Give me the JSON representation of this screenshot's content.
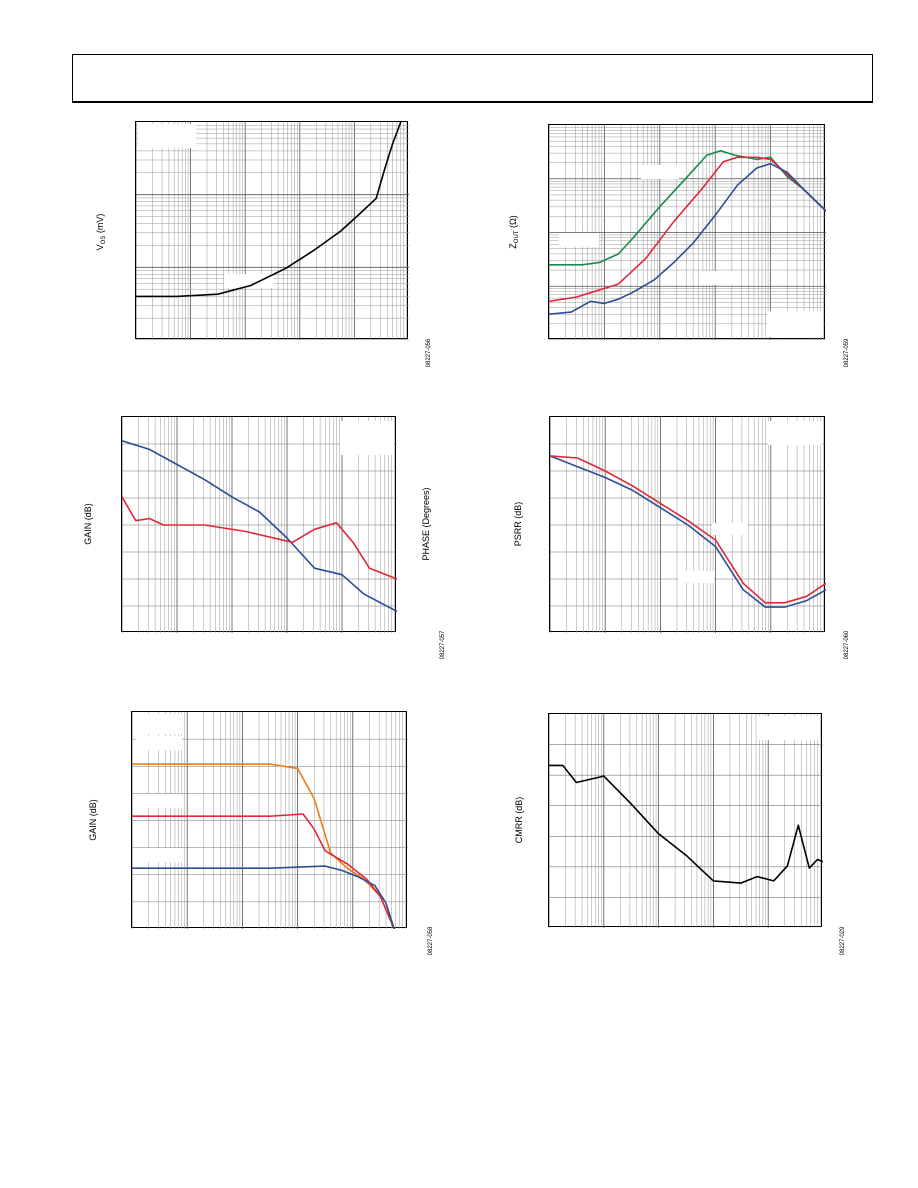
{
  "page": {
    "header": ""
  },
  "colors": {
    "black": "#000000",
    "red": "#e0283a",
    "blue": "#2d4e96",
    "green": "#1a8a4e",
    "orange": "#ee7a1a",
    "legend_fill": "#ffffff"
  },
  "charts": [
    {
      "id": "vos",
      "ylabel_main": "V",
      "ylabel_sub": "OS",
      "ylabel_rest": " (mV)",
      "fig": "08227-056"
    },
    {
      "id": "zout",
      "ylabel_main": "Z",
      "ylabel_sub": "OUT",
      "ylabel_rest": " (Ω)",
      "fig": "08227-059"
    },
    {
      "id": "gainphase",
      "ylabel_left": "GAIN (dB)",
      "ylabel_right": "PHASE (Degrees)",
      "fig": "08227-057"
    },
    {
      "id": "psrr",
      "ylabel": "PSRR (dB)",
      "fig": "08227-060"
    },
    {
      "id": "gain3",
      "ylabel": "GAIN (dB)",
      "fig": "08227-058"
    },
    {
      "id": "cmrr",
      "ylabel": "CMRR (dB)",
      "fig": "08227-029"
    }
  ],
  "chart_data": [
    {
      "type": "line",
      "xscale": "log",
      "series": [
        {
          "color": "black",
          "points": [
            [
              0,
              0.2
            ],
            [
              0.15,
              0.2
            ],
            [
              0.3,
              0.21
            ],
            [
              0.42,
              0.25
            ],
            [
              0.55,
              0.33
            ],
            [
              0.65,
              0.41
            ],
            [
              0.75,
              0.5
            ],
            [
              0.82,
              0.58
            ],
            [
              0.88,
              0.65
            ],
            [
              0.91,
              0.78
            ],
            [
              0.94,
              0.9
            ],
            [
              0.97,
              1.0
            ]
          ]
        }
      ]
    },
    {
      "type": "line",
      "xscale": "log",
      "series": [
        {
          "color": "green",
          "points": [
            [
              0,
              0.35
            ],
            [
              0.12,
              0.35
            ],
            [
              0.18,
              0.36
            ],
            [
              0.25,
              0.4
            ],
            [
              0.3,
              0.47
            ],
            [
              0.4,
              0.62
            ],
            [
              0.5,
              0.76
            ],
            [
              0.57,
              0.86
            ],
            [
              0.62,
              0.88
            ],
            [
              0.67,
              0.86
            ],
            [
              0.75,
              0.84
            ],
            [
              0.8,
              0.85
            ],
            [
              0.86,
              0.76
            ],
            [
              0.92,
              0.7
            ],
            [
              1.0,
              0.6
            ]
          ]
        },
        {
          "color": "red",
          "points": [
            [
              0,
              0.18
            ],
            [
              0.1,
              0.2
            ],
            [
              0.15,
              0.22
            ],
            [
              0.2,
              0.24
            ],
            [
              0.25,
              0.26
            ],
            [
              0.35,
              0.38
            ],
            [
              0.45,
              0.55
            ],
            [
              0.55,
              0.7
            ],
            [
              0.63,
              0.83
            ],
            [
              0.68,
              0.85
            ],
            [
              0.75,
              0.85
            ],
            [
              0.8,
              0.84
            ],
            [
              0.86,
              0.77
            ],
            [
              0.92,
              0.7
            ],
            [
              1.0,
              0.6
            ]
          ]
        },
        {
          "color": "blue",
          "points": [
            [
              0,
              0.12
            ],
            [
              0.08,
              0.13
            ],
            [
              0.15,
              0.18
            ],
            [
              0.2,
              0.17
            ],
            [
              0.25,
              0.19
            ],
            [
              0.3,
              0.22
            ],
            [
              0.38,
              0.28
            ],
            [
              0.45,
              0.36
            ],
            [
              0.52,
              0.45
            ],
            [
              0.6,
              0.58
            ],
            [
              0.68,
              0.72
            ],
            [
              0.75,
              0.8
            ],
            [
              0.8,
              0.82
            ],
            [
              0.86,
              0.78
            ],
            [
              0.92,
              0.7
            ],
            [
              1.0,
              0.6
            ]
          ]
        }
      ]
    },
    {
      "type": "line",
      "xscale": "log",
      "series": [
        {
          "color": "blue",
          "points": [
            [
              0,
              0.89
            ],
            [
              0.1,
              0.85
            ],
            [
              0.2,
              0.78
            ],
            [
              0.3,
              0.71
            ],
            [
              0.4,
              0.63
            ],
            [
              0.5,
              0.56
            ],
            [
              0.6,
              0.44
            ],
            [
              0.7,
              0.3
            ],
            [
              0.8,
              0.27
            ],
            [
              0.88,
              0.18
            ],
            [
              1.0,
              0.1
            ]
          ]
        },
        {
          "color": "red",
          "points": [
            [
              0,
              0.63
            ],
            [
              0.05,
              0.52
            ],
            [
              0.1,
              0.53
            ],
            [
              0.15,
              0.5
            ],
            [
              0.3,
              0.5
            ],
            [
              0.45,
              0.47
            ],
            [
              0.62,
              0.42
            ],
            [
              0.7,
              0.48
            ],
            [
              0.78,
              0.51
            ],
            [
              0.84,
              0.42
            ],
            [
              0.9,
              0.3
            ],
            [
              1.0,
              0.25
            ]
          ]
        }
      ]
    },
    {
      "type": "line",
      "xscale": "log",
      "series": [
        {
          "color": "blue",
          "points": [
            [
              0,
              0.82
            ],
            [
              0.1,
              0.77
            ],
            [
              0.2,
              0.72
            ],
            [
              0.3,
              0.66
            ],
            [
              0.4,
              0.58
            ],
            [
              0.5,
              0.5
            ],
            [
              0.6,
              0.4
            ],
            [
              0.7,
              0.2
            ],
            [
              0.78,
              0.12
            ],
            [
              0.85,
              0.12
            ],
            [
              0.93,
              0.15
            ],
            [
              1.0,
              0.2
            ]
          ]
        },
        {
          "color": "red",
          "points": [
            [
              0,
              0.82
            ],
            [
              0.1,
              0.81
            ],
            [
              0.2,
              0.75
            ],
            [
              0.3,
              0.68
            ],
            [
              0.4,
              0.6
            ],
            [
              0.5,
              0.52
            ],
            [
              0.6,
              0.43
            ],
            [
              0.7,
              0.23
            ],
            [
              0.78,
              0.14
            ],
            [
              0.85,
              0.14
            ],
            [
              0.93,
              0.17
            ],
            [
              1.0,
              0.23
            ]
          ]
        }
      ]
    },
    {
      "type": "line",
      "xscale": "log",
      "series": [
        {
          "color": "orange",
          "points": [
            [
              0,
              0.76
            ],
            [
              0.2,
              0.76
            ],
            [
              0.5,
              0.76
            ],
            [
              0.6,
              0.74
            ],
            [
              0.66,
              0.6
            ],
            [
              0.72,
              0.35
            ],
            [
              0.78,
              0.28
            ],
            [
              0.84,
              0.23
            ],
            [
              0.9,
              0.15
            ],
            [
              0.95,
              0.0
            ]
          ]
        },
        {
          "color": "red",
          "points": [
            [
              0,
              0.52
            ],
            [
              0.2,
              0.52
            ],
            [
              0.5,
              0.52
            ],
            [
              0.62,
              0.53
            ],
            [
              0.66,
              0.46
            ],
            [
              0.7,
              0.36
            ],
            [
              0.78,
              0.3
            ],
            [
              0.85,
              0.23
            ],
            [
              0.9,
              0.15
            ],
            [
              0.95,
              0.0
            ]
          ]
        },
        {
          "color": "blue",
          "points": [
            [
              0,
              0.28
            ],
            [
              0.2,
              0.28
            ],
            [
              0.5,
              0.28
            ],
            [
              0.7,
              0.29
            ],
            [
              0.76,
              0.27
            ],
            [
              0.82,
              0.24
            ],
            [
              0.88,
              0.2
            ],
            [
              0.92,
              0.12
            ],
            [
              0.95,
              0.0
            ]
          ]
        }
      ]
    },
    {
      "type": "line",
      "xscale": "log",
      "series": [
        {
          "color": "black",
          "points": [
            [
              0,
              0.76
            ],
            [
              0.05,
              0.76
            ],
            [
              0.1,
              0.68
            ],
            [
              0.2,
              0.71
            ],
            [
              0.3,
              0.58
            ],
            [
              0.4,
              0.44
            ],
            [
              0.5,
              0.34
            ],
            [
              0.6,
              0.22
            ],
            [
              0.7,
              0.21
            ],
            [
              0.76,
              0.24
            ],
            [
              0.82,
              0.22
            ],
            [
              0.87,
              0.29
            ],
            [
              0.91,
              0.48
            ],
            [
              0.95,
              0.28
            ],
            [
              0.98,
              0.32
            ],
            [
              1.0,
              0.31
            ]
          ]
        }
      ]
    }
  ]
}
